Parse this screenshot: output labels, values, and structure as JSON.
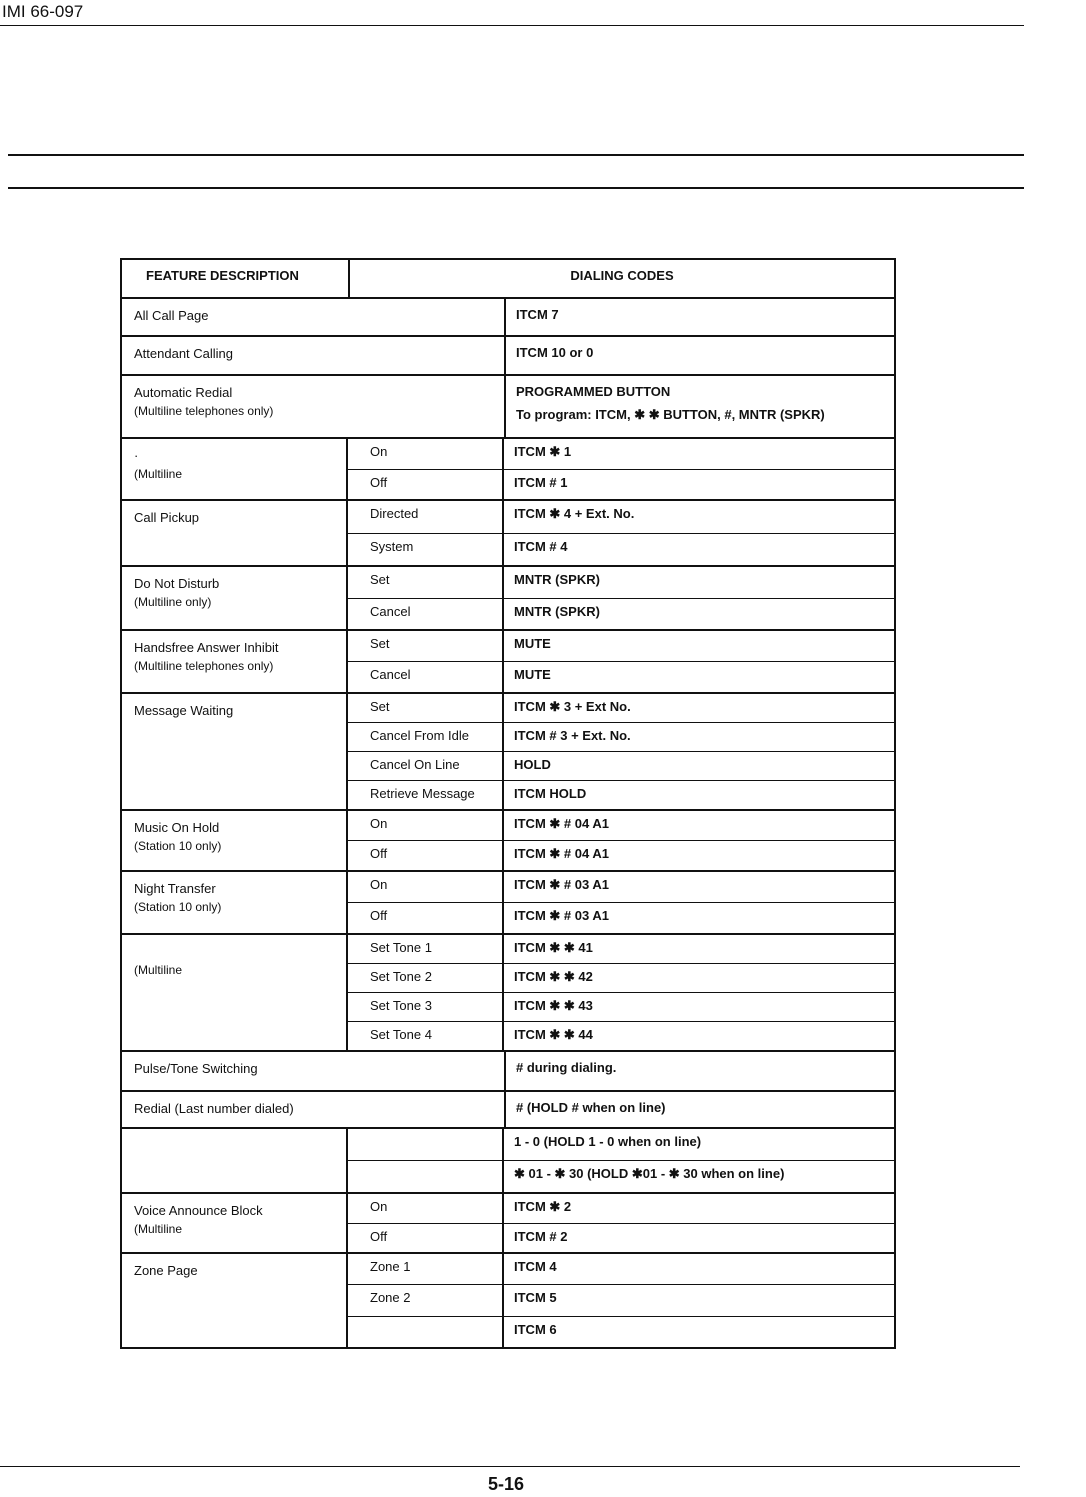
{
  "header": {
    "doc_id": "IMI 66-097"
  },
  "table": {
    "col_feature": "FEATURE DESCRIPTION",
    "col_codes": "DIALING CODES",
    "groups": [
      {
        "feature": [
          "All Call Page"
        ],
        "codes": [
          "ITCM 7"
        ]
      },
      {
        "feature": [
          "Attendant Calling"
        ],
        "codes": [
          "ITCM 10 or 0"
        ]
      },
      {
        "feature": [
          "Automatic Redial",
          "(Multiline telephones only)"
        ],
        "codes": [
          "PROGRAMMED BUTTON",
          "To program: ITCM, ✱ ✱      BUTTON, #, MNTR (SPKR)"
        ]
      },
      {
        "feature": [
          "·",
          "(Multiline"
        ],
        "rows": [
          {
            "sub": "On",
            "code": "ITCM ✱ 1"
          },
          {
            "sub": "Off",
            "code": "ITCM # 1"
          }
        ]
      },
      {
        "feature": [
          "Call Pickup"
        ],
        "rows": [
          {
            "sub": "Directed",
            "code": "ITCM ✱ 4 + Ext. No."
          },
          {
            "sub": "System",
            "code": "ITCM # 4"
          }
        ]
      },
      {
        "feature": [
          "Do Not Disturb",
          "(Multiline                only)"
        ],
        "rows": [
          {
            "sub": "Set",
            "code": "MNTR (SPKR)"
          },
          {
            "sub": "Cancel",
            "code": "MNTR (SPKR)"
          }
        ]
      },
      {
        "feature": [
          "Handsfree Answer Inhibit",
          "(Multiline telephones only)"
        ],
        "rows": [
          {
            "sub": "Set",
            "code": "MUTE"
          },
          {
            "sub": "Cancel",
            "code": "MUTE"
          }
        ]
      },
      {
        "feature": [
          "Message Waiting"
        ],
        "rows": [
          {
            "sub": "Set",
            "code": "ITCM  ✱ 3 + Ext No."
          },
          {
            "sub": "Cancel From Idle",
            "code": "ITCM # 3 + Ext. No."
          },
          {
            "sub": "Cancel On Line",
            "code": "HOLD"
          },
          {
            "sub": "Retrieve Message",
            "code": "ITCM HOLD"
          }
        ]
      },
      {
        "feature": [
          "Music On Hold",
          "(Station 10 only)"
        ],
        "rows": [
          {
            "sub": "On",
            "code": "ITCM ✱ # 04 A1"
          },
          {
            "sub": "Off",
            "code": "ITCM ✱ # 04 A1"
          }
        ]
      },
      {
        "feature": [
          "Night Transfer",
          "(Station 10 only)"
        ],
        "rows": [
          {
            "sub": "On",
            "code": "ITCM ✱ # 03 A1"
          },
          {
            "sub": "Off",
            "code": "ITCM ✱ # 03 A1"
          }
        ]
      },
      {
        "feature": [
          "",
          "(Multiline"
        ],
        "rows": [
          {
            "sub": "Set Tone 1",
            "code": "ITCM ✱ ✱ 41"
          },
          {
            "sub": "Set Tone 2",
            "code": "ITCM ✱ ✱ 42"
          },
          {
            "sub": "Set Tone 3",
            "code": "ITCM ✱ ✱ 43"
          },
          {
            "sub": "Set Tone 4",
            "code": "ITCM ✱ ✱ 44"
          }
        ]
      },
      {
        "feature": [
          "Pulse/Tone Switching"
        ],
        "codes": [
          "# during dialing."
        ]
      },
      {
        "feature": [
          "Redial (Last number dialed)"
        ],
        "codes": [
          "# (HOLD # when on line)"
        ]
      },
      {
        "feature": [
          ""
        ],
        "rows": [
          {
            "sub": "",
            "code": "1 - 0 (HOLD 1 - 0 when on line)"
          },
          {
            "sub": "",
            "code": "✱ 01 -  ✱ 30 (HOLD  ✱01 - ✱ 30 when on line)"
          }
        ]
      },
      {
        "feature": [
          "Voice Announce Block",
          "(Multiline"
        ],
        "rows": [
          {
            "sub": "On",
            "code": "ITCM ✱ 2"
          },
          {
            "sub": "Off",
            "code": "ITCM # 2"
          }
        ]
      },
      {
        "feature": [
          "Zone Page"
        ],
        "rows": [
          {
            "sub": "Zone 1",
            "code": "ITCM 4"
          },
          {
            "sub": "Zone 2",
            "code": "ITCM 5"
          },
          {
            "sub": "",
            "code": "ITCM 6"
          }
        ]
      }
    ]
  },
  "footer": {
    "page_number": "5-16"
  }
}
